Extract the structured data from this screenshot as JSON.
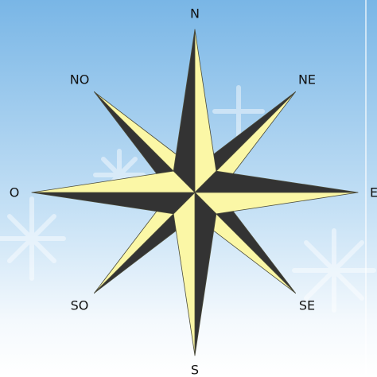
{
  "compass": {
    "labels": [
      "N",
      "NE",
      "E",
      "SE",
      "S",
      "SO",
      "O",
      "NO"
    ]
  }
}
